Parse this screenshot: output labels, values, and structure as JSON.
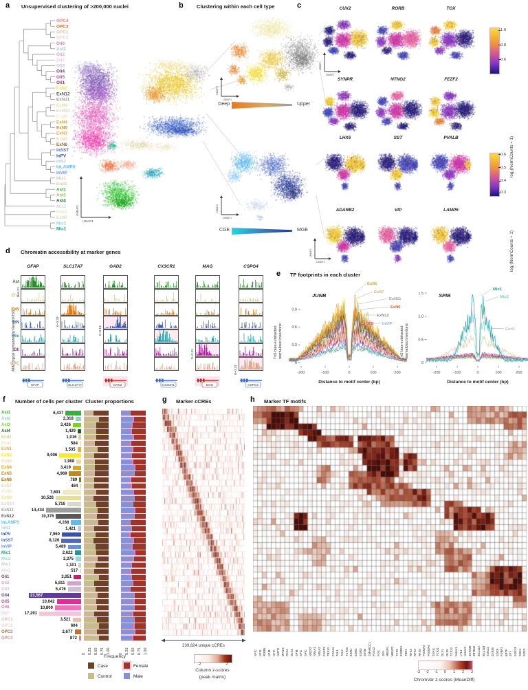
{
  "figure": {
    "a": {
      "label": "a",
      "title": "Unsupervised clustering of  >200,000 nuclei",
      "axes": {
        "x": "UMAP1",
        "y": "UMAP2"
      },
      "dendrogram_order": [
        "OPC4",
        "OPC3",
        "OPC1",
        "OPC2",
        "Oli6",
        "Ast2",
        "Oli2",
        "Oli7",
        "Oli3",
        "Oli4",
        "Oli5",
        "Oli1",
        "ExN2",
        "ExN12",
        "ExN11",
        "ExN9",
        "ExN10",
        "ExN8",
        "ExN4",
        "ExN5",
        "ExN1",
        "ExN3",
        "ExN6",
        "InSST",
        "InPV",
        "InN3",
        "InLAMP5",
        "InVIP",
        "Mix1",
        "End1",
        "Ast1",
        "Ast3",
        "Ast4",
        "Mix2",
        "End2",
        "ExN7",
        "Mic2",
        "Mic1"
      ]
    },
    "b": {
      "label": "b",
      "title": "Clustering within each cell type",
      "axes": {
        "x": "UMAP1",
        "y": "UMAP2"
      },
      "gradients": [
        {
          "left": "Deep",
          "right": "Upper",
          "from": "#e87820",
          "to": "#9a9a9a"
        },
        {
          "left": "CGE",
          "right": "MGE",
          "from": "#24d6e8",
          "to": "#1e3a8f"
        }
      ]
    },
    "c": {
      "label": "c",
      "genes": [
        "CUX2",
        "RORB",
        "TOX",
        "SYNPR",
        "NTNG2",
        "FEZF2",
        "LHX6",
        "SST",
        "PVALB",
        "ADARB2",
        "VIP",
        "LAMP5"
      ],
      "axes": {
        "x": "UMAP1",
        "y": "UMAP2"
      },
      "colorbars": [
        {
          "ticks": [
            "1.0",
            "0.8",
            "0.6"
          ],
          "label": "log₂(NormCounts + 1)"
        },
        {
          "ticks": [
            "0.6",
            "0.5",
            "0.4",
            "0.3"
          ],
          "label": "log₂(NormCounts + 1)"
        }
      ]
    },
    "d": {
      "label": "d",
      "title": "Chromatin accessibility at marker genes",
      "ylabel": "ATAC signal normalized by ReadsInTSS",
      "genes": [
        {
          "name": "GFAP",
          "scale": "0–0.21",
          "color": "#3a6cc8",
          "marker_row": 0
        },
        {
          "name": "SLC17A7",
          "scale": "0–0.33",
          "color": "#3a6cc8",
          "marker_row": 2
        },
        {
          "name": "GAD2",
          "scale": "0–0.13",
          "color": "#c03028",
          "marker_row": 3
        },
        {
          "name": "CX3CR1",
          "scale": "",
          "color": "#3a6cc8",
          "marker_row": 4
        },
        {
          "name": "MAG",
          "scale": "0–0.31",
          "color": "#c03028",
          "marker_row": 5
        },
        {
          "name": "CSPG4",
          "scale": "0–0.24",
          "color": "#3a6cc8",
          "marker_row": 6
        }
      ],
      "rows": [
        {
          "name": "Ast",
          "color": "#1e8c1e"
        },
        {
          "name": "End",
          "color": "#d4c28e"
        },
        {
          "name": "ExN",
          "color": "#d87818"
        },
        {
          "name": "InN",
          "color": "#3858b0"
        },
        {
          "name": "Mic",
          "color": "#18a0a8"
        },
        {
          "name": "Oli",
          "color": "#b020a0"
        },
        {
          "name": "OPC",
          "color": "#dba588"
        }
      ]
    },
    "e": {
      "label": "e",
      "title": "TF footprints in each cluster",
      "ylabel1": "Tn5 bias-subtracted",
      "ylabel2": "normalized insertions",
      "xlabel": "Distance to motif center (bp)",
      "xticks": [
        "-200",
        "-100",
        "0",
        "100",
        "200"
      ],
      "plots": [
        {
          "gene": "JUNB",
          "yticks": [
            "0",
            "0.3",
            "0.6",
            "0.9"
          ],
          "labels": [
            {
              "text": "ExN1",
              "color": "#f0a020"
            },
            {
              "text": "ExN7",
              "color": "#cbb87e"
            },
            {
              "text": "ExN11",
              "color": "#9e9e9e"
            },
            {
              "text": "ExN6",
              "color": "#e05a10"
            },
            {
              "text": "ExN12",
              "color": "#8a8a8a"
            },
            {
              "text": "Oli5",
              "color": "#ee3fa8"
            },
            {
              "text": "InVIP",
              "color": "#8fb3e6"
            }
          ]
        },
        {
          "gene": "SPIB",
          "yticks": [
            "0",
            "0.5",
            "1.0",
            "1.5"
          ],
          "labels": [
            {
              "text": "Mic1",
              "color": "#1d9a9a"
            },
            {
              "text": "Mic2",
              "color": "#7eccd8"
            },
            {
              "text": "End1",
              "color": "#d4c28e"
            }
          ]
        }
      ]
    },
    "f": {
      "label": "f",
      "title_counts": "Number of cells per cluster",
      "title_props": "Cluster proportions",
      "xlabel": "Frequency",
      "axis_ticks": [
        "0",
        "0.25",
        "0.50",
        "0.75",
        "1.00"
      ],
      "legend": [
        {
          "label": "Case",
          "color": "#6b4226"
        },
        {
          "label": "Control",
          "color": "#c6bc8f"
        },
        {
          "label": "Female",
          "color": "#9e3528"
        },
        {
          "label": "Male",
          "color": "#8891d8"
        }
      ],
      "clusters": [
        {
          "name": "Ast1",
          "count": "6,437",
          "color": "#33b533"
        },
        {
          "name": "Ast2",
          "count": "2,318",
          "color": "#8fd4be"
        },
        {
          "name": "Ast3",
          "count": "3,426",
          "color": "#7ed321"
        },
        {
          "name": "Ast4",
          "count": "1,429",
          "color": "#1c5f1c"
        },
        {
          "name": "End1",
          "count": "1,016",
          "color": "#dccda2"
        },
        {
          "name": "End2",
          "count": "584",
          "color": "#ece4c4"
        },
        {
          "name": "ExN1",
          "count": "1,535",
          "color": "#f2a93b"
        },
        {
          "name": "ExN2",
          "count": "9,006",
          "color": "#f6ea2c"
        },
        {
          "name": "ExN3",
          "count": "1,908",
          "color": "#ead9a2"
        },
        {
          "name": "ExN4",
          "count": "3,419",
          "color": "#d8a827"
        },
        {
          "name": "ExN5",
          "count": "4,969",
          "color": "#c08a1d"
        },
        {
          "name": "ExN6",
          "count": "789",
          "color": "#a26c12"
        },
        {
          "name": "ExN7",
          "count": "484",
          "color": "#e5d8a8"
        },
        {
          "name": "ExN8",
          "count": "7,691",
          "color": "#f0e9c6"
        },
        {
          "name": "ExN9",
          "count": "10,528",
          "color": "#e8de96"
        },
        {
          "name": "ExN10",
          "count": "5,716",
          "color": "#d8d8cc"
        },
        {
          "name": "ExN11",
          "count": "14,434",
          "color": "#9e9e9e"
        },
        {
          "name": "ExN12",
          "count": "10,376",
          "color": "#5a5a5a"
        },
        {
          "name": "InLAMP5",
          "count": "4,168",
          "color": "#63b8ef"
        },
        {
          "name": "InN3",
          "count": "1,421",
          "color": "#bcc8e6"
        },
        {
          "name": "InPV",
          "count": "7,960",
          "color": "#3a50ad"
        },
        {
          "name": "InSST",
          "count": "8,126",
          "color": "#5266bd"
        },
        {
          "name": "InVIP",
          "count": "5,489",
          "color": "#6b8fd8"
        },
        {
          "name": "Mic1",
          "count": "2,622",
          "color": "#1d9a9a"
        },
        {
          "name": "Mic2",
          "count": "2,275",
          "color": "#97d8e4"
        },
        {
          "name": "Mix1",
          "count": "1,101",
          "color": "#cfccc6"
        },
        {
          "name": "Mix2",
          "count": "517",
          "color": "#dedad2"
        },
        {
          "name": "Oli1",
          "count": "3,051",
          "color": "#cb2064"
        },
        {
          "name": "Oli2",
          "count": "5,811",
          "color": "#d5a2cc"
        },
        {
          "name": "Oli3",
          "count": "5,476",
          "color": "#cfc0d6"
        },
        {
          "name": "Oli4",
          "count": "21,567",
          "color": "#5e3c98"
        },
        {
          "name": "Oli5",
          "count": "10,042",
          "color": "#ee25a0"
        },
        {
          "name": "Oli6",
          "count": "10,800",
          "color": "#f272ba"
        },
        {
          "name": "Oli7",
          "count": "17,291",
          "color": "#f6c3dd"
        },
        {
          "name": "OPC1",
          "count": "3,521",
          "color": "#e9bfae"
        },
        {
          "name": "OPC2",
          "count": "604",
          "color": "#f4d2da"
        },
        {
          "name": "OPC3",
          "count": "2,677",
          "color": "#d2691e"
        },
        {
          "name": "OPC4",
          "count": "872",
          "color": "#f08080"
        }
      ]
    },
    "g": {
      "label": "g",
      "title": "Marker cCREs",
      "xlabel": "239,824 unique cCREs",
      "colorbar": {
        "tick_left": "-2",
        "tick_right": "2",
        "caption1": "Column z-scores",
        "caption2": "(peak matrix)"
      }
    },
    "h": {
      "label": "h",
      "title": "Marker TF motifs",
      "colorbar": {
        "ticks": [
          "-3",
          "-2",
          "-1",
          "0",
          "1",
          "2",
          "3"
        ],
        "caption": "ChromVar z-scores (MeanDiff)"
      },
      "motifs": [
        "NFIC",
        "NFIX",
        "RORB",
        "NFIB",
        "NFIA",
        "NOTO",
        "MYOG",
        "PAX4",
        "DLX3",
        "SPIB",
        "SPI1",
        "SPIC",
        "NR2F2",
        "NR4A1",
        "NR4A2",
        "FOXP2",
        "TBX10",
        "FOSL1",
        "TAL1",
        "TAL2",
        "TCF23",
        "EGR1",
        "EGR2",
        "EGR3",
        "JUNB",
        "SMARCC1",
        "FOSL2",
        "FOS",
        "JUN",
        "MESP1",
        "MESP2",
        "TCF3",
        "EOMES",
        "TBR1",
        "RFX3",
        "RFX2",
        "RFX5",
        "POU2F2",
        "POU3F4",
        "SNAI1",
        "TCF21",
        "DLX1",
        "DLX5",
        "TCF12",
        "NHLH1",
        "LYL1",
        "NHLH2",
        "ZNF238",
        "ZBTB42",
        "BCL11A",
        "BCL11B",
        "SOX12",
        "ZNF35",
        "SOX9",
        "FUBP1",
        "BPTF",
        "ZFY",
        "SOX13",
        "SOX4",
        "SOX3"
      ]
    }
  }
}
